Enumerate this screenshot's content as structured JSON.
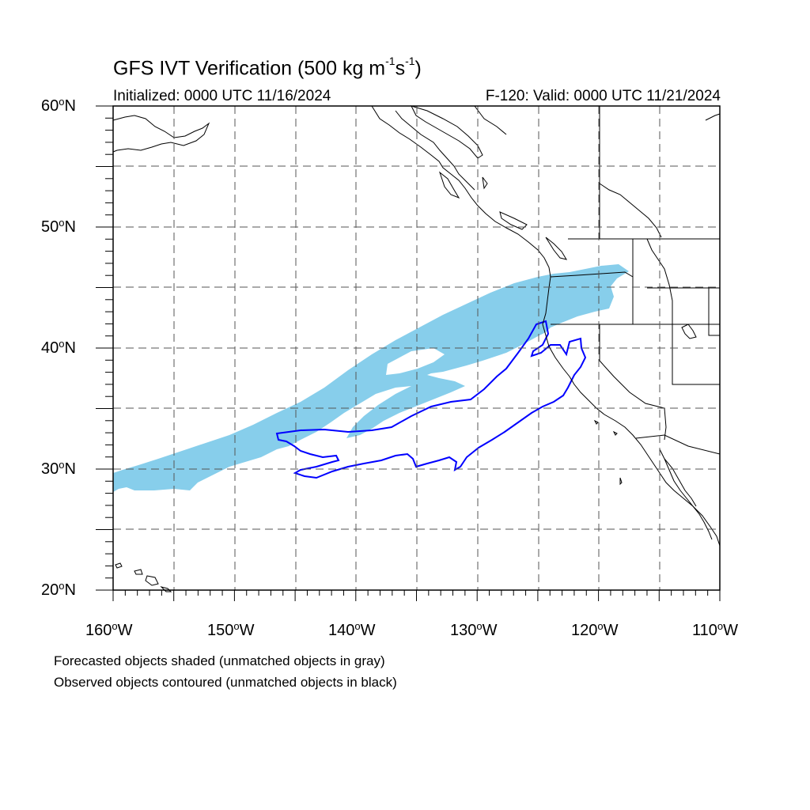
{
  "title": {
    "main": "GFS IVT Verification (500 kg m",
    "exp1": "-1",
    "mid": "s",
    "exp2": "-1",
    "close": ")"
  },
  "initialized": "Initialized: 0000 UTC 11/16/2024",
  "valid": "F-120: Valid: 0000 UTC 11/21/2024",
  "lat_labels": [
    "60",
    "50",
    "40",
    "30",
    "20"
  ],
  "lat_suffix": "N",
  "lon_labels": [
    "160",
    "150",
    "140",
    "130",
    "120",
    "110"
  ],
  "lon_suffix": "W",
  "notes": [
    "Forecasted objects shaded (unmatched objects in gray)",
    "Observed objects contoured (unmatched objects in black)"
  ],
  "colors": {
    "forecast_fill": "#87ceeb",
    "observed_contour": "#0000ff",
    "coastline": "#000000",
    "grid": "#555555"
  }
}
